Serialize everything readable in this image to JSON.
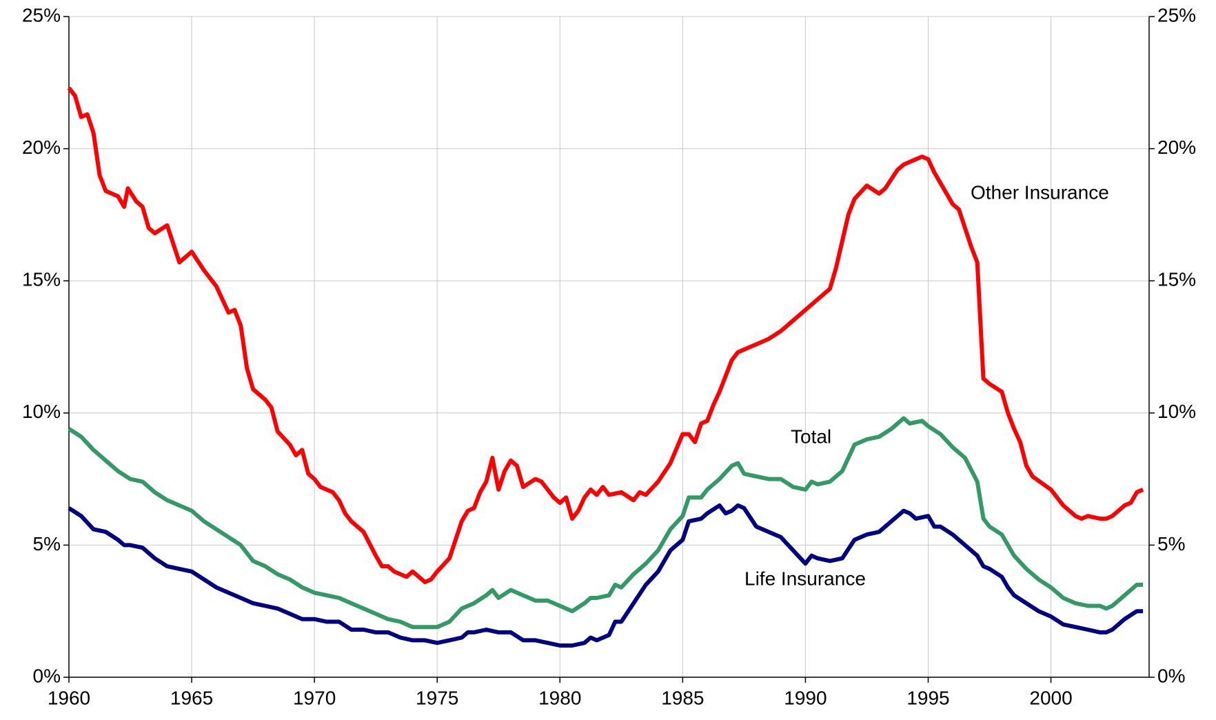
{
  "chart_data": {
    "type": "line",
    "xlim": [
      1960,
      2004
    ],
    "xticks": [
      1960,
      1965,
      1970,
      1975,
      1980,
      1985,
      1990,
      1995,
      2000
    ],
    "ylim": [
      0,
      25
    ],
    "yticks": [
      {
        "value": 0,
        "label": "0%"
      },
      {
        "value": 5,
        "label": "5%"
      },
      {
        "value": 10,
        "label": "10%"
      },
      {
        "value": 15,
        "label": "15%"
      },
      {
        "value": 20,
        "label": "20%"
      },
      {
        "value": 25,
        "label": "25%"
      }
    ],
    "y2lim": [
      0,
      25
    ],
    "y2ticks": [
      {
        "value": 0,
        "label": "0%"
      },
      {
        "value": 5,
        "label": "5%"
      },
      {
        "value": 10,
        "label": "10%"
      },
      {
        "value": 15,
        "label": "15%"
      },
      {
        "value": 20,
        "label": "20%"
      },
      {
        "value": 25,
        "label": "25%"
      }
    ],
    "grid": true,
    "series": [
      {
        "name": "Other Insurance",
        "color": "#ff0000",
        "x": [
          1960,
          1960.25,
          1960.5,
          1960.75,
          1961,
          1961.25,
          1961.5,
          1962,
          1962.25,
          1962.4,
          1962.75,
          1963,
          1963.25,
          1963.5,
          1964,
          1964.5,
          1965,
          1965.5,
          1966,
          1966.25,
          1966.5,
          1966.75,
          1967,
          1967.25,
          1967.5,
          1968,
          1968.25,
          1968.5,
          1969,
          1969.25,
          1969.5,
          1969.75,
          1970,
          1970.25,
          1970.75,
          1971,
          1971.25,
          1971.5,
          1972,
          1972.5,
          1972.75,
          1973,
          1973.25,
          1973.75,
          1974,
          1974.5,
          1974.75,
          1975,
          1975.5,
          1976,
          1976.25,
          1976.5,
          1976.75,
          1977,
          1977.25,
          1977.5,
          1977.75,
          1978,
          1978.25,
          1978.5,
          1979,
          1979.25,
          1979.75,
          1980,
          1980.25,
          1980.5,
          1980.75,
          1981,
          1981.25,
          1981.5,
          1981.75,
          1982,
          1982.5,
          1983,
          1983.25,
          1983.5,
          1984,
          1984.5,
          1985,
          1985.25,
          1985.5,
          1985.75,
          1986,
          1986.25,
          1986.5,
          1987,
          1987.25,
          1987.75,
          1988,
          1988.5,
          1989,
          1989.5,
          1990,
          1990.5,
          1991,
          1991.25,
          1991.75,
          1992,
          1992.5,
          1993,
          1993.25,
          1993.75,
          1994,
          1994.5,
          1994.75,
          1995,
          1995.25,
          1995.75,
          1996,
          1996.25,
          1996.75,
          1997,
          1997.25,
          1997.5,
          1998,
          1998.25,
          1998.5,
          1998.75,
          1999,
          1999.25,
          2000,
          2000.5,
          2001,
          2001.25,
          2001.5,
          2002,
          2002.25,
          2002.5,
          2002.75,
          2003,
          2003.25,
          2003.5,
          2003.75
        ],
        "values": [
          22.3,
          22.0,
          21.2,
          21.3,
          20.6,
          19.0,
          18.4,
          18.2,
          17.8,
          18.5,
          18.0,
          17.8,
          17.0,
          16.8,
          17.1,
          15.7,
          16.1,
          15.4,
          14.8,
          14.3,
          13.8,
          13.9,
          13.3,
          11.7,
          10.9,
          10.5,
          10.2,
          9.3,
          8.8,
          8.4,
          8.6,
          7.7,
          7.5,
          7.2,
          7.0,
          6.7,
          6.2,
          5.9,
          5.5,
          4.6,
          4.2,
          4.2,
          4.0,
          3.8,
          4.0,
          3.6,
          3.7,
          4.0,
          4.5,
          5.9,
          6.3,
          6.4,
          7.0,
          7.4,
          8.3,
          7.1,
          7.8,
          8.2,
          8.0,
          7.2,
          7.5,
          7.4,
          6.8,
          6.6,
          6.8,
          6.0,
          6.3,
          6.8,
          7.1,
          6.9,
          7.2,
          6.9,
          7.0,
          6.7,
          7.0,
          6.9,
          7.4,
          8.1,
          9.2,
          9.2,
          8.9,
          9.6,
          9.7,
          10.3,
          10.8,
          12.0,
          12.3,
          12.5,
          12.6,
          12.8,
          13.1,
          13.5,
          13.9,
          14.3,
          14.7,
          15.5,
          17.5,
          18.1,
          18.6,
          18.3,
          18.5,
          19.2,
          19.4,
          19.6,
          19.7,
          19.6,
          19.1,
          18.3,
          17.9,
          17.7,
          16.3,
          15.7,
          11.3,
          11.1,
          10.8,
          10.0,
          9.4,
          8.9,
          8.0,
          7.6,
          7.1,
          6.5,
          6.1,
          6.0,
          6.1,
          6.0,
          6.0,
          6.1,
          6.3,
          6.5,
          6.6,
          7.0,
          7.1
        ]
      },
      {
        "name": "Total",
        "color": "#339966",
        "x": [
          1960,
          1960.5,
          1961,
          1961.5,
          1962,
          1962.5,
          1963,
          1963.5,
          1964,
          1964.5,
          1965,
          1965.5,
          1966,
          1966.5,
          1967,
          1967.5,
          1968,
          1968.5,
          1969,
          1969.5,
          1970,
          1970.5,
          1971,
          1971.5,
          1972,
          1972.5,
          1973,
          1973.5,
          1974,
          1974.5,
          1975,
          1975.5,
          1976,
          1976.5,
          1977,
          1977.25,
          1977.5,
          1978,
          1978.5,
          1979,
          1979.5,
          1980,
          1980.5,
          1981,
          1981.25,
          1981.5,
          1982,
          1982.25,
          1982.5,
          1983,
          1983.5,
          1984,
          1984.5,
          1985,
          1985.25,
          1985.75,
          1986,
          1986.5,
          1987,
          1987.25,
          1987.5,
          1988,
          1988.5,
          1989,
          1989.5,
          1990,
          1990.25,
          1990.5,
          1991,
          1991.5,
          1992,
          1992.5,
          1993,
          1993.5,
          1994,
          1994.25,
          1994.75,
          1995,
          1995.5,
          1996,
          1996.5,
          1997,
          1997.25,
          1997.5,
          1998,
          1998.5,
          1999,
          1999.5,
          2000,
          2000.5,
          2001,
          2001.5,
          2002,
          2002.25,
          2002.5,
          2003,
          2003.5,
          2003.75
        ],
        "values": [
          9.4,
          9.1,
          8.6,
          8.2,
          7.8,
          7.5,
          7.4,
          7.0,
          6.7,
          6.5,
          6.3,
          5.9,
          5.6,
          5.3,
          5.0,
          4.4,
          4.2,
          3.9,
          3.7,
          3.4,
          3.2,
          3.1,
          3.0,
          2.8,
          2.6,
          2.4,
          2.2,
          2.1,
          1.9,
          1.9,
          1.9,
          2.1,
          2.6,
          2.8,
          3.1,
          3.3,
          3.0,
          3.3,
          3.1,
          2.9,
          2.9,
          2.7,
          2.5,
          2.8,
          3.0,
          3.0,
          3.1,
          3.5,
          3.4,
          3.9,
          4.3,
          4.8,
          5.6,
          6.1,
          6.8,
          6.8,
          7.1,
          7.5,
          8.0,
          8.1,
          7.7,
          7.6,
          7.5,
          7.5,
          7.2,
          7.1,
          7.4,
          7.3,
          7.4,
          7.8,
          8.8,
          9.0,
          9.1,
          9.4,
          9.8,
          9.6,
          9.7,
          9.5,
          9.2,
          8.7,
          8.3,
          7.4,
          6.0,
          5.7,
          5.4,
          4.6,
          4.1,
          3.7,
          3.4,
          3.0,
          2.8,
          2.7,
          2.7,
          2.6,
          2.7,
          3.1,
          3.5,
          3.5
        ]
      },
      {
        "name": "Life Insurance",
        "color": "#000080",
        "x": [
          1960,
          1960.5,
          1961,
          1961.5,
          1962,
          1962.25,
          1962.5,
          1963,
          1963.5,
          1964,
          1964.5,
          1965,
          1965.5,
          1966,
          1966.5,
          1967,
          1967.5,
          1968,
          1968.5,
          1969,
          1969.5,
          1970,
          1970.5,
          1971,
          1971.5,
          1972,
          1972.5,
          1973,
          1973.5,
          1974,
          1974.5,
          1975,
          1975.5,
          1976,
          1976.25,
          1976.5,
          1977,
          1977.5,
          1978,
          1978.5,
          1979,
          1979.5,
          1980,
          1980.5,
          1981,
          1981.25,
          1981.5,
          1982,
          1982.25,
          1982.5,
          1983,
          1983.5,
          1984,
          1984.5,
          1985,
          1985.25,
          1985.75,
          1986,
          1986.5,
          1986.75,
          1987,
          1987.25,
          1987.5,
          1988,
          1988.5,
          1989,
          1989.5,
          1990,
          1990.25,
          1990.5,
          1991,
          1991.5,
          1992,
          1992.5,
          1993,
          1993.5,
          1994,
          1994.25,
          1994.5,
          1995,
          1995.25,
          1995.5,
          1996,
          1996.5,
          1997,
          1997.25,
          1997.5,
          1998,
          1998.25,
          1998.5,
          1999,
          1999.5,
          2000,
          2000.5,
          2001,
          2001.5,
          2002,
          2002.25,
          2002.5,
          2003,
          2003.5,
          2003.75
        ],
        "values": [
          6.4,
          6.1,
          5.6,
          5.5,
          5.2,
          5.0,
          5.0,
          4.9,
          4.5,
          4.2,
          4.1,
          4.0,
          3.7,
          3.4,
          3.2,
          3.0,
          2.8,
          2.7,
          2.6,
          2.4,
          2.2,
          2.2,
          2.1,
          2.1,
          1.8,
          1.8,
          1.7,
          1.7,
          1.5,
          1.4,
          1.4,
          1.3,
          1.4,
          1.5,
          1.7,
          1.7,
          1.8,
          1.7,
          1.7,
          1.4,
          1.4,
          1.3,
          1.2,
          1.2,
          1.3,
          1.5,
          1.4,
          1.6,
          2.1,
          2.1,
          2.8,
          3.5,
          4.0,
          4.8,
          5.2,
          5.9,
          6.0,
          6.2,
          6.5,
          6.2,
          6.3,
          6.5,
          6.4,
          5.7,
          5.5,
          5.3,
          4.8,
          4.3,
          4.6,
          4.5,
          4.4,
          4.5,
          5.2,
          5.4,
          5.5,
          5.9,
          6.3,
          6.2,
          6.0,
          6.1,
          5.7,
          5.7,
          5.4,
          5.0,
          4.6,
          4.2,
          4.1,
          3.8,
          3.4,
          3.1,
          2.8,
          2.5,
          2.3,
          2.0,
          1.9,
          1.8,
          1.7,
          1.7,
          1.8,
          2.2,
          2.5,
          2.5
        ]
      }
    ]
  }
}
